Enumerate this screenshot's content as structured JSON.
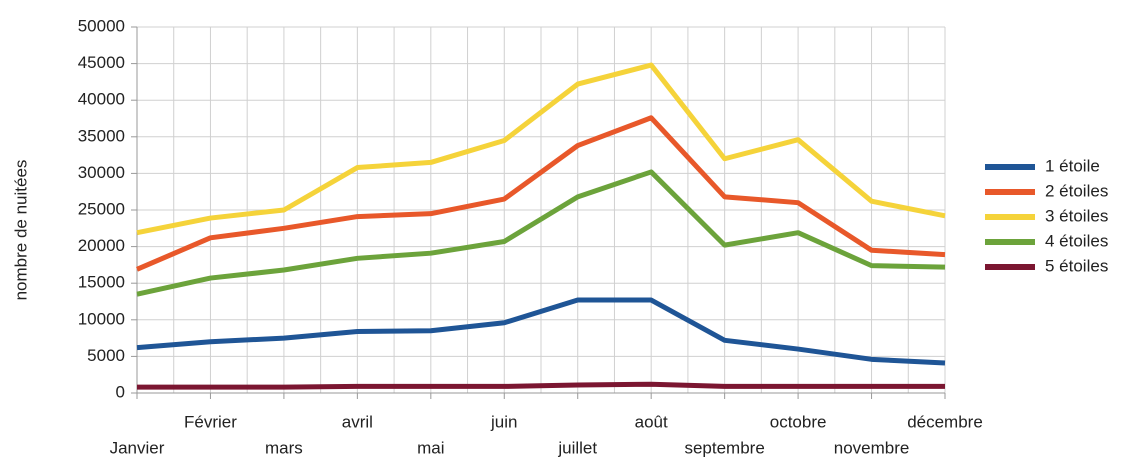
{
  "chart_data": {
    "type": "line",
    "y_label": "nombre de nuitées",
    "categories": [
      "Janvier",
      "Février",
      "mars",
      "avril",
      "mai",
      "juin",
      "juillet",
      "août",
      "septembre",
      "octobre",
      "novembre",
      "décembre"
    ],
    "series": [
      {
        "name": "1 étoile",
        "color": "#1f5596",
        "values": [
          6200,
          7000,
          7500,
          8400,
          8500,
          9600,
          12700,
          12700,
          7200,
          6000,
          4600,
          4100
        ]
      },
      {
        "name": "2 étoiles",
        "color": "#e8582a",
        "values": [
          16900,
          21200,
          22500,
          24100,
          24500,
          26500,
          33800,
          37600,
          26800,
          26000,
          19500,
          18900
        ]
      },
      {
        "name": "3 étoiles",
        "color": "#f5d33a",
        "values": [
          21900,
          23900,
          25000,
          30800,
          31500,
          34500,
          42200,
          44800,
          32000,
          34600,
          26200,
          24200
        ]
      },
      {
        "name": "4 étoiles",
        "color": "#6ca33b",
        "values": [
          13500,
          15700,
          16800,
          18400,
          19100,
          20700,
          26800,
          30200,
          20200,
          21900,
          17400,
          17200
        ]
      },
      {
        "name": "5 étoiles",
        "color": "#7b1631",
        "values": [
          800,
          800,
          800,
          900,
          900,
          900,
          1100,
          1200,
          900,
          900,
          900,
          900
        ]
      }
    ],
    "ylim": [
      0,
      50000
    ],
    "yticks": [
      0,
      5000,
      10000,
      15000,
      20000,
      25000,
      30000,
      35000,
      40000,
      45000,
      50000
    ],
    "grid": true,
    "legend": "right"
  }
}
